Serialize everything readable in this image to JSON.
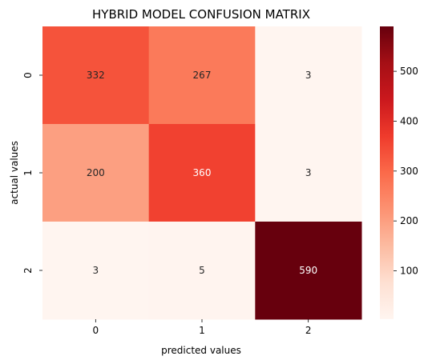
{
  "chart_data": {
    "type": "heatmap",
    "title": "HYBRID MODEL CONFUSION MATRIX",
    "xlabel": "predicted values",
    "ylabel": "actual values",
    "x_categories": [
      "0",
      "1",
      "2"
    ],
    "y_categories": [
      "0",
      "1",
      "2"
    ],
    "values": [
      [
        332,
        267,
        3
      ],
      [
        200,
        360,
        3
      ],
      [
        3,
        5,
        590
      ]
    ],
    "colormap": "Reds",
    "vmin": 3,
    "vmax": 590,
    "colorbar_ticks": [
      100,
      200,
      300,
      400,
      500
    ]
  }
}
